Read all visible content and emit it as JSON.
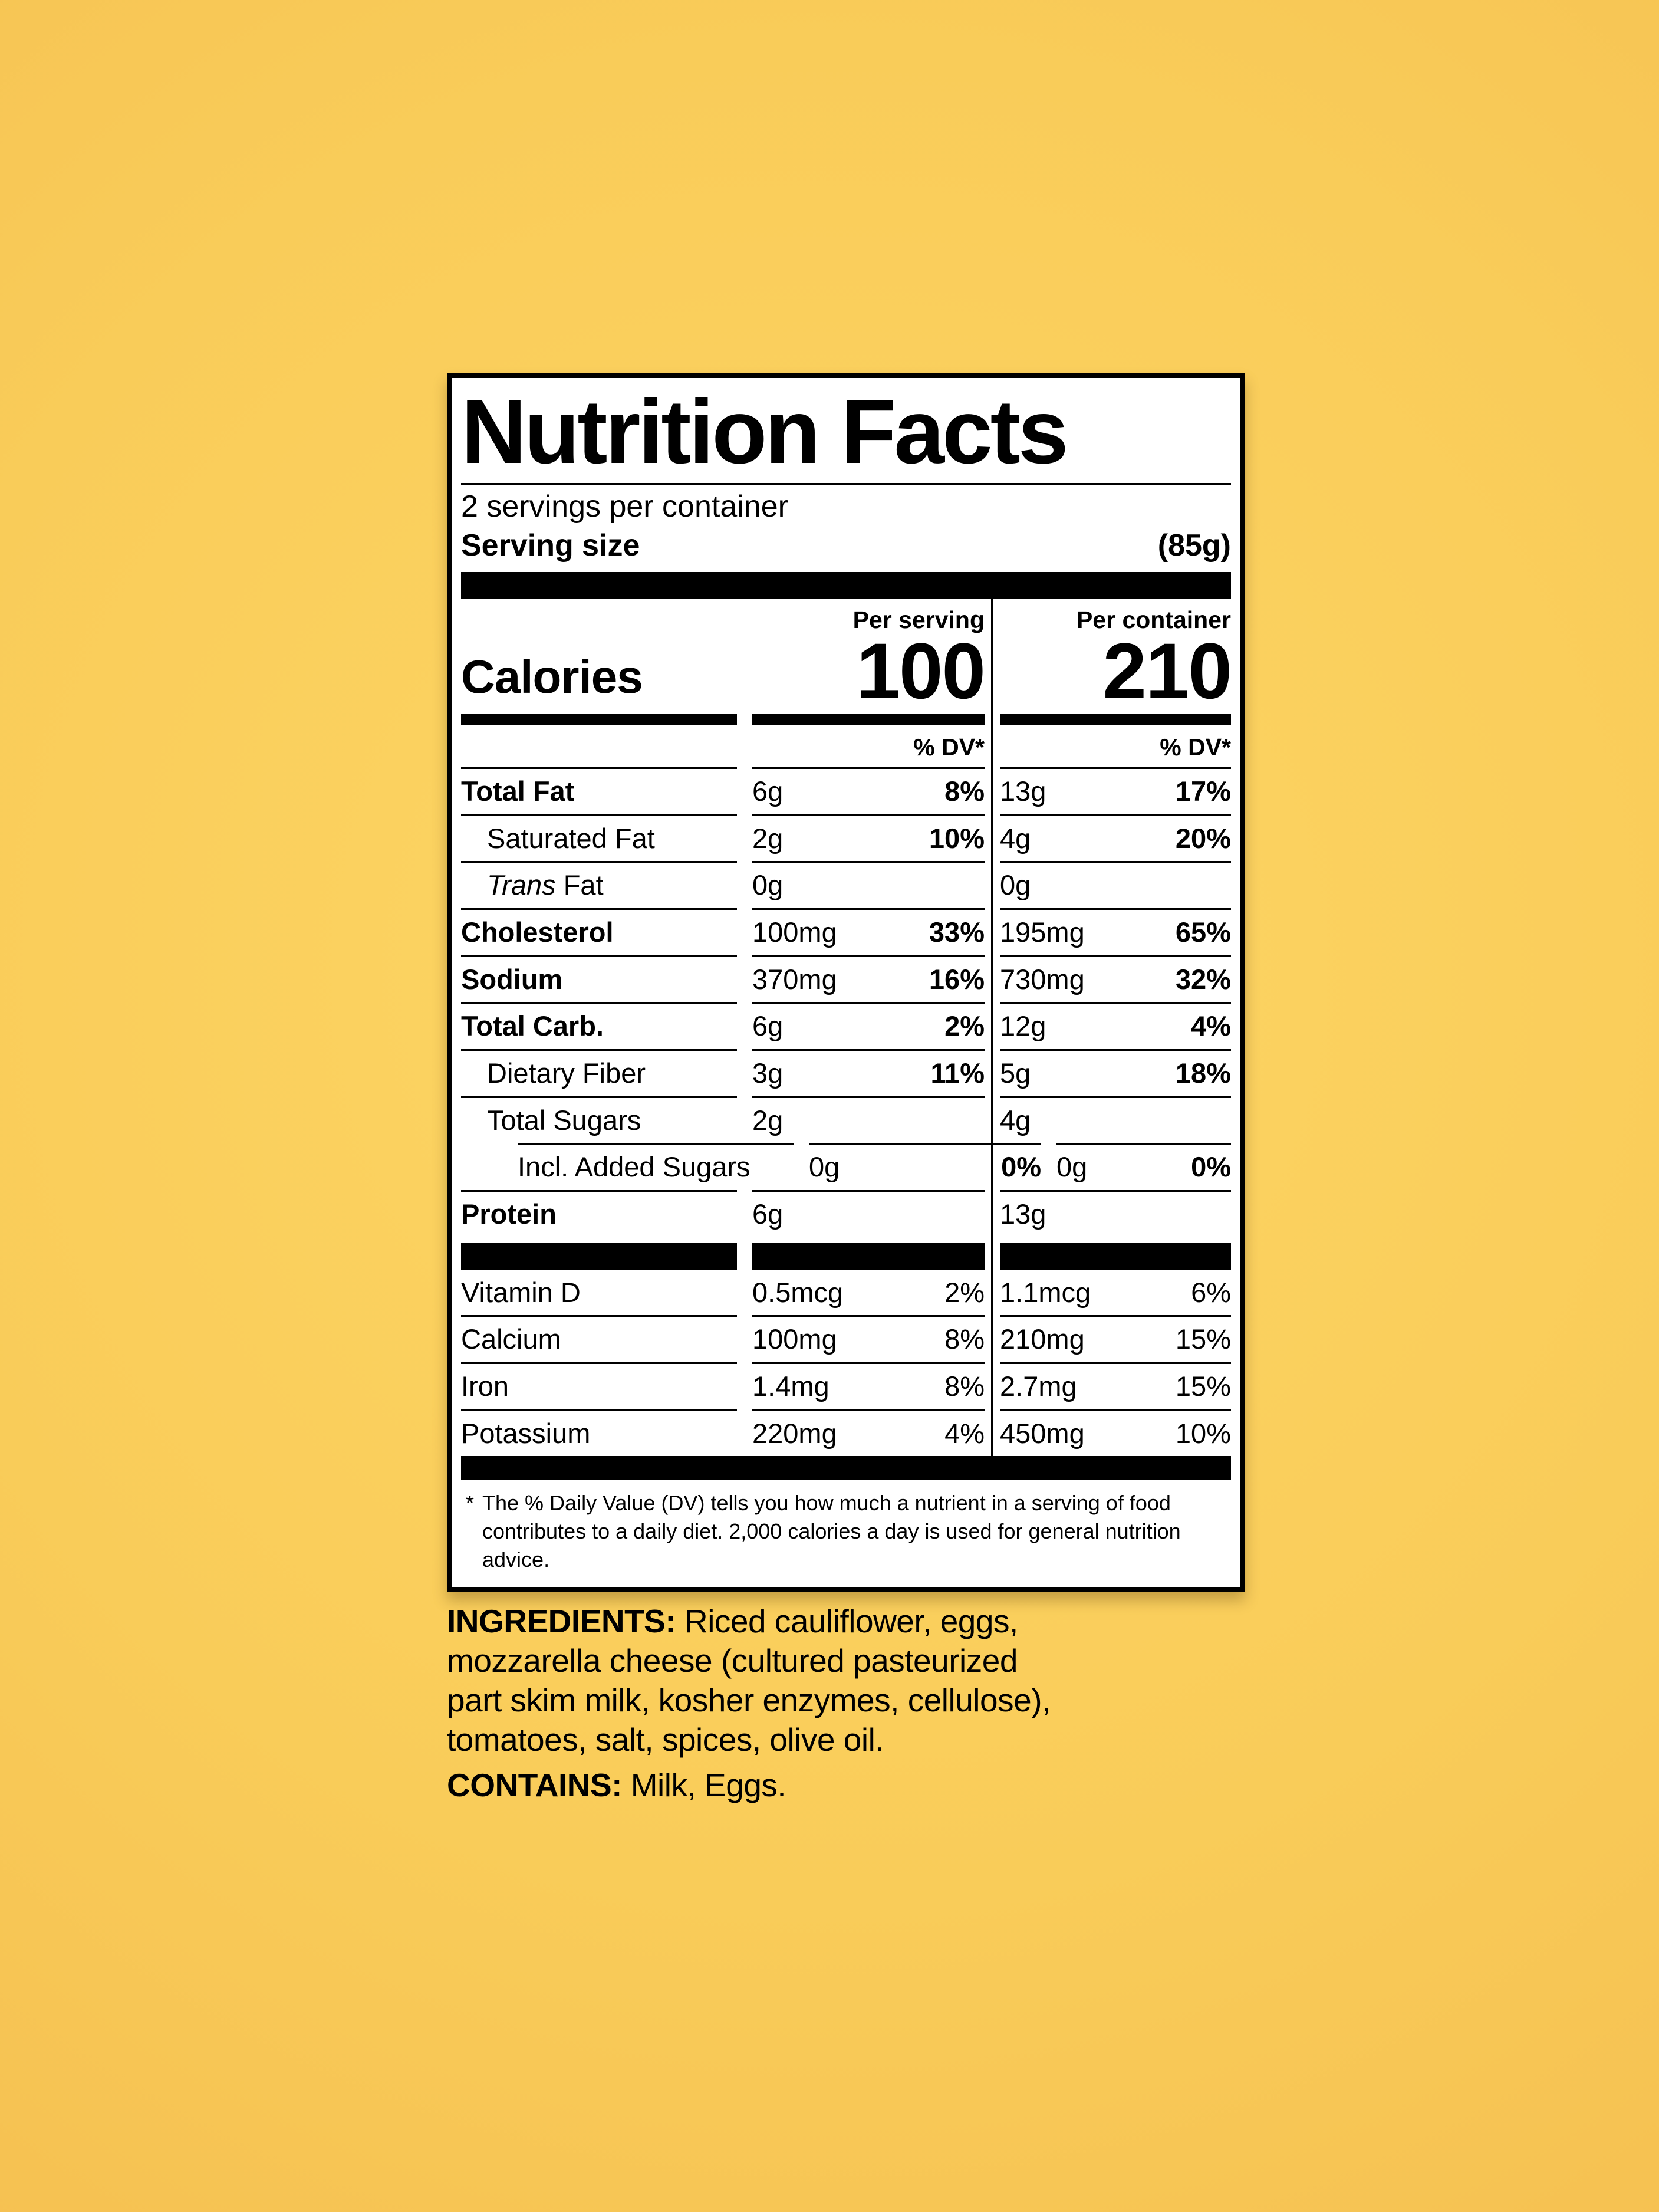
{
  "background": {
    "center_color": "#fdd665",
    "edge_color": "#f0b446"
  },
  "label": {
    "title": "Nutrition Facts",
    "servings_per_container": "2 servings per container",
    "serving_size_label": "Serving size",
    "serving_size_value": "(85g)",
    "col_headers": {
      "serving": "Per serving",
      "container": "Per container"
    },
    "calories_label": "Calories",
    "calories_serving": "100",
    "calories_container": "210",
    "dv_header": "% DV*",
    "rows": [
      {
        "label": "Total Fat",
        "bold": true,
        "indent": 0,
        "s_amt": "6g",
        "s_dv": "8%",
        "c_amt": "13g",
        "c_dv": "17%"
      },
      {
        "label": "Saturated Fat",
        "bold": false,
        "indent": 1,
        "s_amt": "2g",
        "s_dv": "10%",
        "c_amt": "4g",
        "c_dv": "20%"
      },
      {
        "label_italic": "Trans",
        "label": " Fat",
        "bold": false,
        "indent": 1,
        "s_amt": "0g",
        "s_dv": "",
        "c_amt": "0g",
        "c_dv": ""
      },
      {
        "label": "Cholesterol",
        "bold": true,
        "indent": 0,
        "s_amt": "100mg",
        "s_dv": "33%",
        "c_amt": "195mg",
        "c_dv": "65%"
      },
      {
        "label": "Sodium",
        "bold": true,
        "indent": 0,
        "s_amt": "370mg",
        "s_dv": "16%",
        "c_amt": "730mg",
        "c_dv": "32%"
      },
      {
        "label": "Total Carb.",
        "bold": true,
        "indent": 0,
        "s_amt": "6g",
        "s_dv": "2%",
        "c_amt": "12g",
        "c_dv": "4%"
      },
      {
        "label": "Dietary Fiber",
        "bold": false,
        "indent": 1,
        "s_amt": "3g",
        "s_dv": "11%",
        "c_amt": "5g",
        "c_dv": "18%"
      },
      {
        "label": "Total Sugars",
        "bold": false,
        "indent": 1,
        "s_amt": "2g",
        "s_dv": "",
        "c_amt": "4g",
        "c_dv": ""
      },
      {
        "label": "Incl. Added Sugars",
        "bold": false,
        "indent": 2,
        "s_amt": "0g",
        "s_dv": "0%",
        "c_amt": "0g",
        "c_dv": "0%"
      },
      {
        "label": "Protein",
        "bold": true,
        "indent": 0,
        "s_amt": "6g",
        "s_dv": "",
        "c_amt": "13g",
        "c_dv": ""
      }
    ],
    "vitamins": [
      {
        "label": "Vitamin D",
        "s_amt": "0.5mcg",
        "s_dv": "2%",
        "c_amt": "1.1mcg",
        "c_dv": "6%"
      },
      {
        "label": "Calcium",
        "s_amt": "100mg",
        "s_dv": "8%",
        "c_amt": "210mg",
        "c_dv": "15%"
      },
      {
        "label": "Iron",
        "s_amt": "1.4mg",
        "s_dv": "8%",
        "c_amt": "2.7mg",
        "c_dv": "15%"
      },
      {
        "label": "Potassium",
        "s_amt": "220mg",
        "s_dv": "4%",
        "c_amt": "450mg",
        "c_dv": "10%"
      }
    ],
    "footnote_marker": "*",
    "footnote": "The % Daily Value (DV) tells you how much a nutrient in a serving of food contributes to a daily diet. 2,000 calories a day is used for general nutrition advice."
  },
  "ingredients": {
    "heading": "INGREDIENTS:",
    "text": " Riced cauliflower, eggs, mozzarella cheese (cultured pasteurized part skim milk, kosher enzymes, cellulose), tomatoes, salt, spices,  olive oil.",
    "contains_heading": "CONTAINS:",
    "contains_text": " Milk, Eggs."
  }
}
